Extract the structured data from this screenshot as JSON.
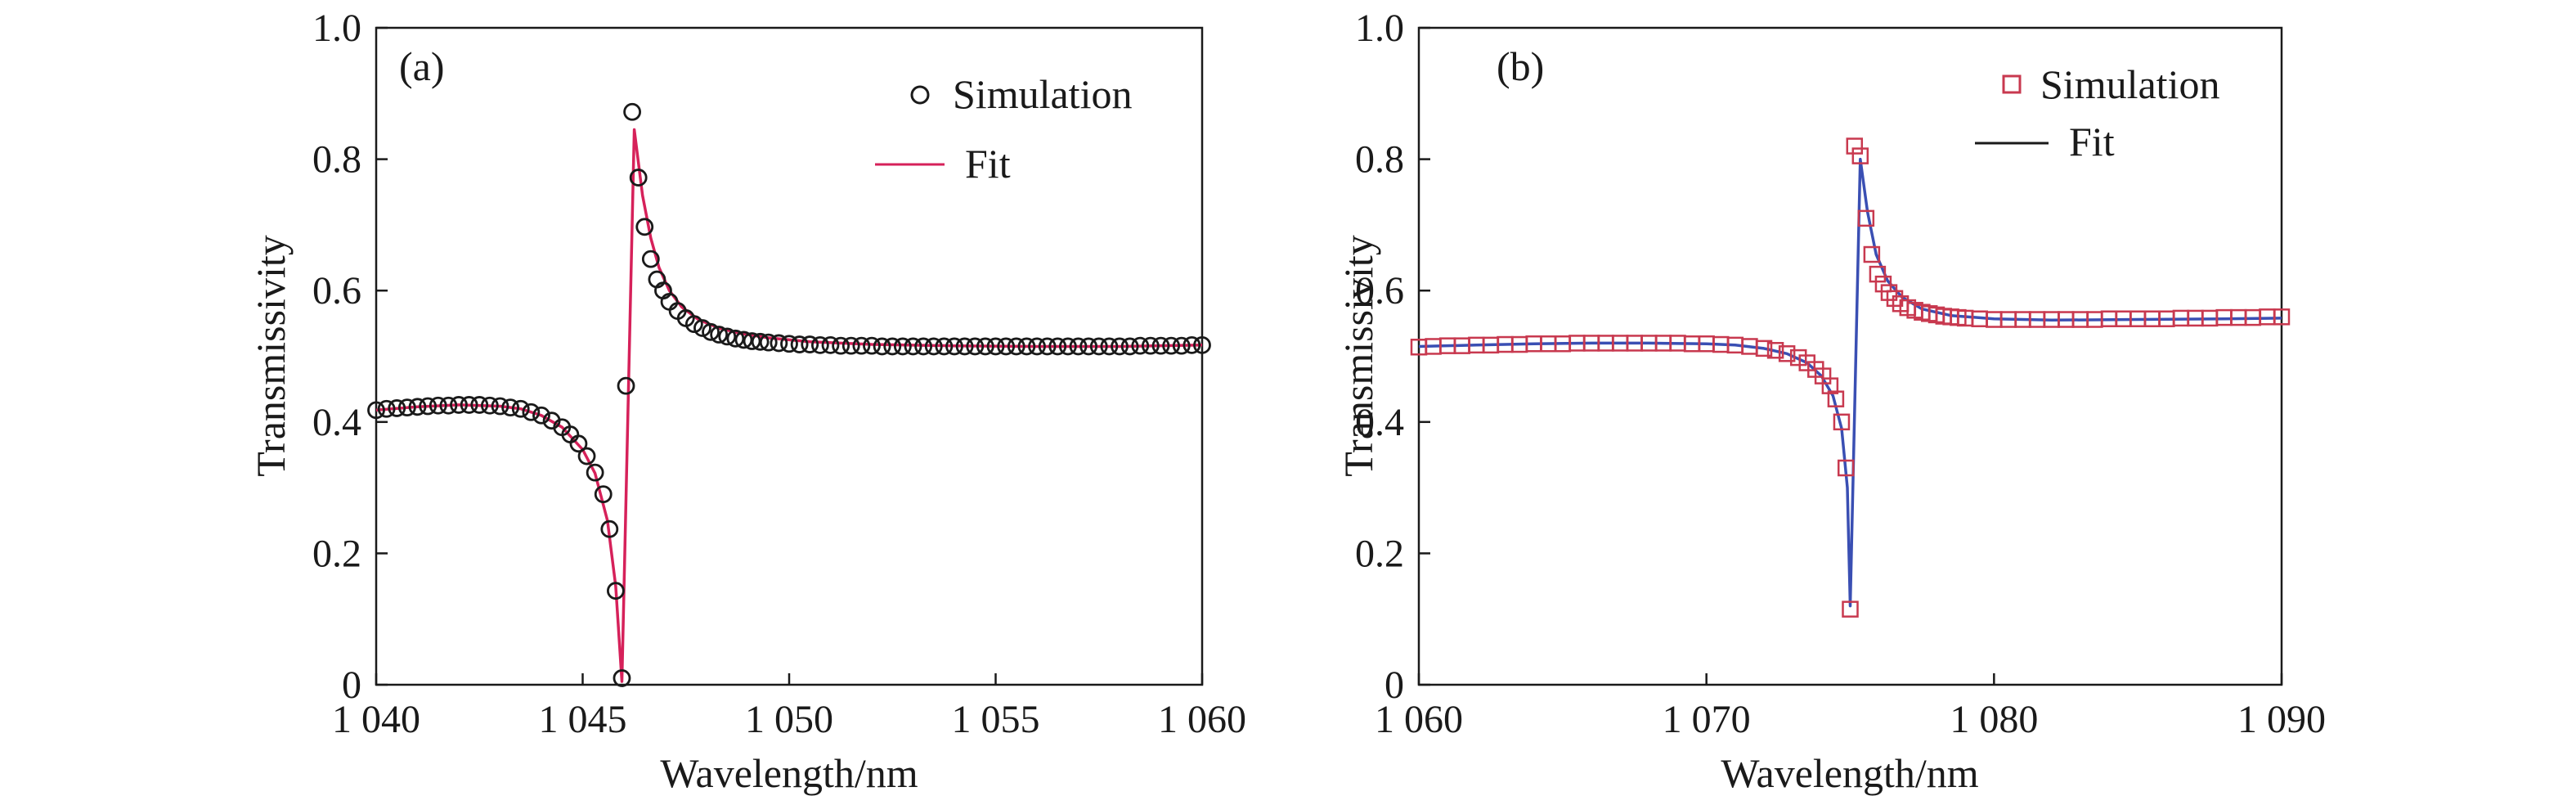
{
  "chart_data": [
    {
      "type": "scatter",
      "panel_label": "(a)",
      "xlabel": "Wavelength/nm",
      "ylabel": "Transmissivity",
      "xlim": [
        1040,
        1060
      ],
      "ylim": [
        0,
        1.0
      ],
      "x_ticks": [
        1040,
        1045,
        1050,
        1055,
        1060
      ],
      "x_tick_labels": [
        "1 040",
        "1 045",
        "1 050",
        "1 055",
        "1 060"
      ],
      "y_ticks": [
        0,
        0.2,
        0.4,
        0.6,
        0.8,
        1.0
      ],
      "y_tick_labels": [
        "0",
        "0.2",
        "0.4",
        "0.6",
        "0.8",
        "1.0"
      ],
      "grid": false,
      "legend_position": "top-right",
      "series": [
        {
          "name": "Simulation",
          "kind": "scatter",
          "marker": "circle",
          "color": "#1a1a1a",
          "x": [
            1040.0,
            1040.25,
            1040.5,
            1040.75,
            1041.0,
            1041.25,
            1041.5,
            1041.75,
            1042.0,
            1042.25,
            1042.5,
            1042.75,
            1043.0,
            1043.25,
            1043.5,
            1043.75,
            1044.0,
            1044.25,
            1044.5,
            1044.7,
            1044.9,
            1045.1,
            1045.3,
            1045.5,
            1045.65,
            1045.8,
            1045.95,
            1046.05,
            1046.2,
            1046.35,
            1046.5,
            1046.65,
            1046.8,
            1046.95,
            1047.1,
            1047.3,
            1047.5,
            1047.7,
            1047.9,
            1048.1,
            1048.3,
            1048.5,
            1048.7,
            1048.9,
            1049.1,
            1049.3,
            1049.5,
            1049.75,
            1050.0,
            1050.25,
            1050.5,
            1050.75,
            1051.0,
            1051.25,
            1051.5,
            1051.75,
            1052.0,
            1052.25,
            1052.5,
            1052.75,
            1053.0,
            1053.25,
            1053.5,
            1053.75,
            1054.0,
            1054.25,
            1054.5,
            1054.75,
            1055.0,
            1055.25,
            1055.5,
            1055.75,
            1056.0,
            1056.25,
            1056.5,
            1056.75,
            1057.0,
            1057.25,
            1057.5,
            1057.75,
            1058.0,
            1058.25,
            1058.5,
            1058.75,
            1059.0,
            1059.25,
            1059.5,
            1059.75,
            1060.0
          ],
          "y": [
            0.418,
            0.42,
            0.421,
            0.422,
            0.423,
            0.424,
            0.425,
            0.425,
            0.426,
            0.426,
            0.426,
            0.425,
            0.424,
            0.422,
            0.42,
            0.415,
            0.41,
            0.402,
            0.392,
            0.381,
            0.367,
            0.348,
            0.323,
            0.29,
            0.237,
            0.143,
            0.01,
            0.455,
            0.872,
            0.772,
            0.697,
            0.648,
            0.617,
            0.6,
            0.583,
            0.569,
            0.558,
            0.549,
            0.543,
            0.537,
            0.533,
            0.53,
            0.527,
            0.525,
            0.523,
            0.522,
            0.521,
            0.52,
            0.519,
            0.518,
            0.518,
            0.517,
            0.517,
            0.516,
            0.516,
            0.516,
            0.516,
            0.515,
            0.515,
            0.515,
            0.515,
            0.515,
            0.515,
            0.515,
            0.515,
            0.515,
            0.515,
            0.515,
            0.515,
            0.515,
            0.515,
            0.515,
            0.515,
            0.515,
            0.515,
            0.515,
            0.515,
            0.515,
            0.515,
            0.515,
            0.515,
            0.515,
            0.516,
            0.516,
            0.516,
            0.516,
            0.516,
            0.517,
            0.517
          ]
        },
        {
          "name": "Fit",
          "kind": "line",
          "color": "#d6215a",
          "x": [
            1040.0,
            1041.0,
            1042.0,
            1043.0,
            1043.5,
            1044.0,
            1044.5,
            1045.0,
            1045.3,
            1045.6,
            1045.8,
            1045.95,
            1046.25,
            1046.45,
            1046.65,
            1046.85,
            1047.1,
            1047.4,
            1047.8,
            1048.3,
            1048.8,
            1049.5,
            1050.5,
            1052.0,
            1054.0,
            1056.0,
            1058.0,
            1060.0
          ],
          "y": [
            0.418,
            0.423,
            0.426,
            0.424,
            0.42,
            0.41,
            0.392,
            0.358,
            0.322,
            0.25,
            0.15,
            0.005,
            0.845,
            0.745,
            0.68,
            0.635,
            0.6,
            0.575,
            0.556,
            0.543,
            0.535,
            0.528,
            0.522,
            0.518,
            0.516,
            0.515,
            0.515,
            0.517
          ]
        }
      ]
    },
    {
      "type": "scatter",
      "panel_label": "(b)",
      "xlabel": "Wavelength/nm",
      "ylabel": "Transmissivity",
      "xlim": [
        1060,
        1090
      ],
      "ylim": [
        0,
        1.0
      ],
      "x_ticks": [
        1060,
        1070,
        1080,
        1090
      ],
      "x_tick_labels": [
        "1 060",
        "1 070",
        "1 080",
        "1 090"
      ],
      "y_ticks": [
        0,
        0.2,
        0.4,
        0.6,
        0.8,
        1.0
      ],
      "y_tick_labels": [
        "0",
        "0.2",
        "0.4",
        "0.6",
        "0.8",
        "1.0"
      ],
      "grid": false,
      "legend_position": "top-right",
      "series": [
        {
          "name": "Simulation",
          "kind": "scatter",
          "marker": "square",
          "color": "#c8394f",
          "x": [
            1060.0,
            1060.5,
            1061.0,
            1061.5,
            1062.0,
            1062.5,
            1063.0,
            1063.5,
            1064.0,
            1064.5,
            1065.0,
            1065.5,
            1066.0,
            1066.5,
            1067.0,
            1067.5,
            1068.0,
            1068.5,
            1069.0,
            1069.5,
            1070.0,
            1070.5,
            1071.0,
            1071.5,
            1072.0,
            1072.4,
            1072.8,
            1073.2,
            1073.5,
            1073.8,
            1074.05,
            1074.3,
            1074.5,
            1074.7,
            1074.85,
            1075.0,
            1075.15,
            1075.35,
            1075.55,
            1075.75,
            1075.95,
            1076.15,
            1076.35,
            1076.55,
            1076.75,
            1077.0,
            1077.25,
            1077.5,
            1077.75,
            1078.0,
            1078.25,
            1078.5,
            1078.75,
            1079.0,
            1079.5,
            1080.0,
            1080.5,
            1081.0,
            1081.5,
            1082.0,
            1082.5,
            1083.0,
            1083.5,
            1084.0,
            1084.5,
            1085.0,
            1085.5,
            1086.0,
            1086.5,
            1087.0,
            1087.5,
            1088.0,
            1088.5,
            1089.0,
            1089.5,
            1090.0
          ],
          "y": [
            0.514,
            0.515,
            0.516,
            0.516,
            0.517,
            0.517,
            0.518,
            0.518,
            0.519,
            0.519,
            0.519,
            0.52,
            0.52,
            0.52,
            0.52,
            0.52,
            0.52,
            0.52,
            0.52,
            0.519,
            0.519,
            0.518,
            0.517,
            0.515,
            0.512,
            0.509,
            0.504,
            0.498,
            0.49,
            0.48,
            0.47,
            0.455,
            0.435,
            0.4,
            0.33,
            0.115,
            0.82,
            0.805,
            0.71,
            0.655,
            0.625,
            0.61,
            0.597,
            0.588,
            0.58,
            0.574,
            0.57,
            0.567,
            0.565,
            0.563,
            0.561,
            0.56,
            0.559,
            0.558,
            0.557,
            0.556,
            0.556,
            0.556,
            0.556,
            0.556,
            0.556,
            0.556,
            0.556,
            0.557,
            0.557,
            0.557,
            0.557,
            0.557,
            0.558,
            0.558,
            0.558,
            0.559,
            0.559,
            0.559,
            0.56,
            0.56
          ]
        },
        {
          "name": "Fit",
          "kind": "line",
          "color": "#3a4fb3",
          "x": [
            1060.0,
            1062.0,
            1064.0,
            1066.0,
            1068.0,
            1070.0,
            1071.0,
            1072.0,
            1072.8,
            1073.5,
            1074.0,
            1074.4,
            1074.7,
            1074.9,
            1075.0,
            1075.35,
            1075.6,
            1075.9,
            1076.3,
            1076.8,
            1077.5,
            1078.5,
            1080.0,
            1082.0,
            1085.0,
            1088.0,
            1090.0
          ],
          "y": [
            0.515,
            0.517,
            0.519,
            0.52,
            0.52,
            0.519,
            0.517,
            0.512,
            0.504,
            0.49,
            0.47,
            0.44,
            0.39,
            0.3,
            0.12,
            0.8,
            0.72,
            0.655,
            0.615,
            0.59,
            0.572,
            0.562,
            0.557,
            0.555,
            0.556,
            0.557,
            0.558
          ]
        }
      ]
    }
  ]
}
